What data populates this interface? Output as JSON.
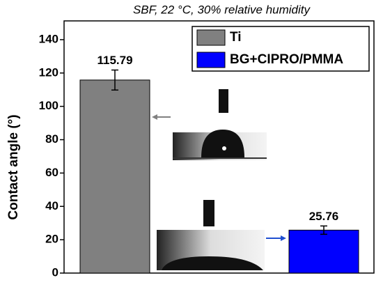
{
  "chart_data": {
    "type": "bar",
    "title": "SBF, 22 °C, 30% relative humidity",
    "y_label": "Contact angle (°)",
    "series": [
      {
        "name": "Ti",
        "color": "#808080",
        "values": [
          115.79
        ],
        "errors": [
          6
        ]
      },
      {
        "name": "BG+CIPRO/PMMA",
        "color": "#0000ff",
        "values": [
          25.76
        ],
        "errors": [
          2.5
        ]
      }
    ],
    "ylim": [
      0,
      150
    ],
    "yticks": [
      0,
      20,
      40,
      60,
      80,
      100,
      120,
      140
    ],
    "legend": "upper right"
  }
}
